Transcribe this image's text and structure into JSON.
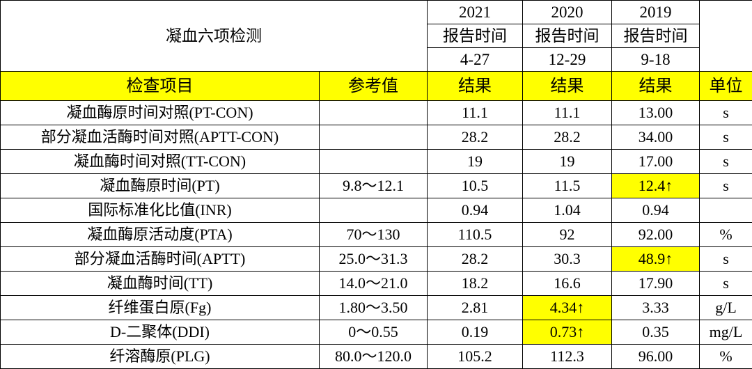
{
  "title": "凝血六项检测",
  "columns": [
    {
      "year": "2021",
      "label": "报告时间",
      "date": "4-27"
    },
    {
      "year": "2020",
      "label": "报告时间",
      "date": "12-29"
    },
    {
      "year": "2019",
      "label": "报告时间",
      "date": "9-18"
    }
  ],
  "header": {
    "item": "检查项目",
    "ref": "参考值",
    "result_2021": "结果",
    "result_2020": "结果",
    "result_2019": "结果",
    "unit": "单位"
  },
  "rows": [
    {
      "item": "凝血酶原时间对照(PT-CON)",
      "ref": "",
      "v2021": "11.1",
      "v2020": "11.1",
      "v2019": "13.00",
      "unit": "s"
    },
    {
      "item": "部分凝血活酶时间对照(APTT-CON)",
      "ref": "",
      "v2021": "28.2",
      "v2020": "28.2",
      "v2019": "34.00",
      "unit": "s"
    },
    {
      "item": "凝血酶时间对照(TT-CON)",
      "ref": "",
      "v2021": "19",
      "v2020": "19",
      "v2019": "17.00",
      "unit": "s"
    },
    {
      "item": "凝血酶原时间(PT)",
      "ref": "9.8～12.1",
      "v2021": "10.5",
      "v2020": "11.5",
      "v2019": "12.4↑",
      "unit": "s"
    },
    {
      "item": "国际标准化比值(INR)",
      "ref": "",
      "v2021": "0.94",
      "v2020": "1.04",
      "v2019": "0.94",
      "unit": ""
    },
    {
      "item": "凝血酶原活动度(PTA)",
      "ref": "70～130",
      "v2021": "110.5",
      "v2020": "92",
      "v2019": "92.00",
      "unit": "%"
    },
    {
      "item": "部分凝血活酶时间(APTT)",
      "ref": "25.0～31.3",
      "v2021": "28.2",
      "v2020": "30.3",
      "v2019": "48.9↑",
      "unit": "s"
    },
    {
      "item": "凝血酶时间(TT)",
      "ref": "14.0～21.0",
      "v2021": "18.2",
      "v2020": "16.6",
      "v2019": "17.90",
      "unit": "s"
    },
    {
      "item": "纤维蛋白原(Fg)",
      "ref": "1.80～3.50",
      "v2021": "2.81",
      "v2020": "4.34↑",
      "v2019": "3.33",
      "unit": "g/L"
    },
    {
      "item": "D-二聚体(DDI)",
      "ref": "0～0.55",
      "v2021": "0.19",
      "v2020": "0.73↑",
      "v2019": "0.35",
      "unit": "mg/L"
    },
    {
      "item": "纤溶酶原(PLG)",
      "ref": "80.0～120.0",
      "v2021": "105.2",
      "v2020": "112.3",
      "v2019": "96.00",
      "unit": "%"
    }
  ],
  "highlight_color": "#ffff00"
}
